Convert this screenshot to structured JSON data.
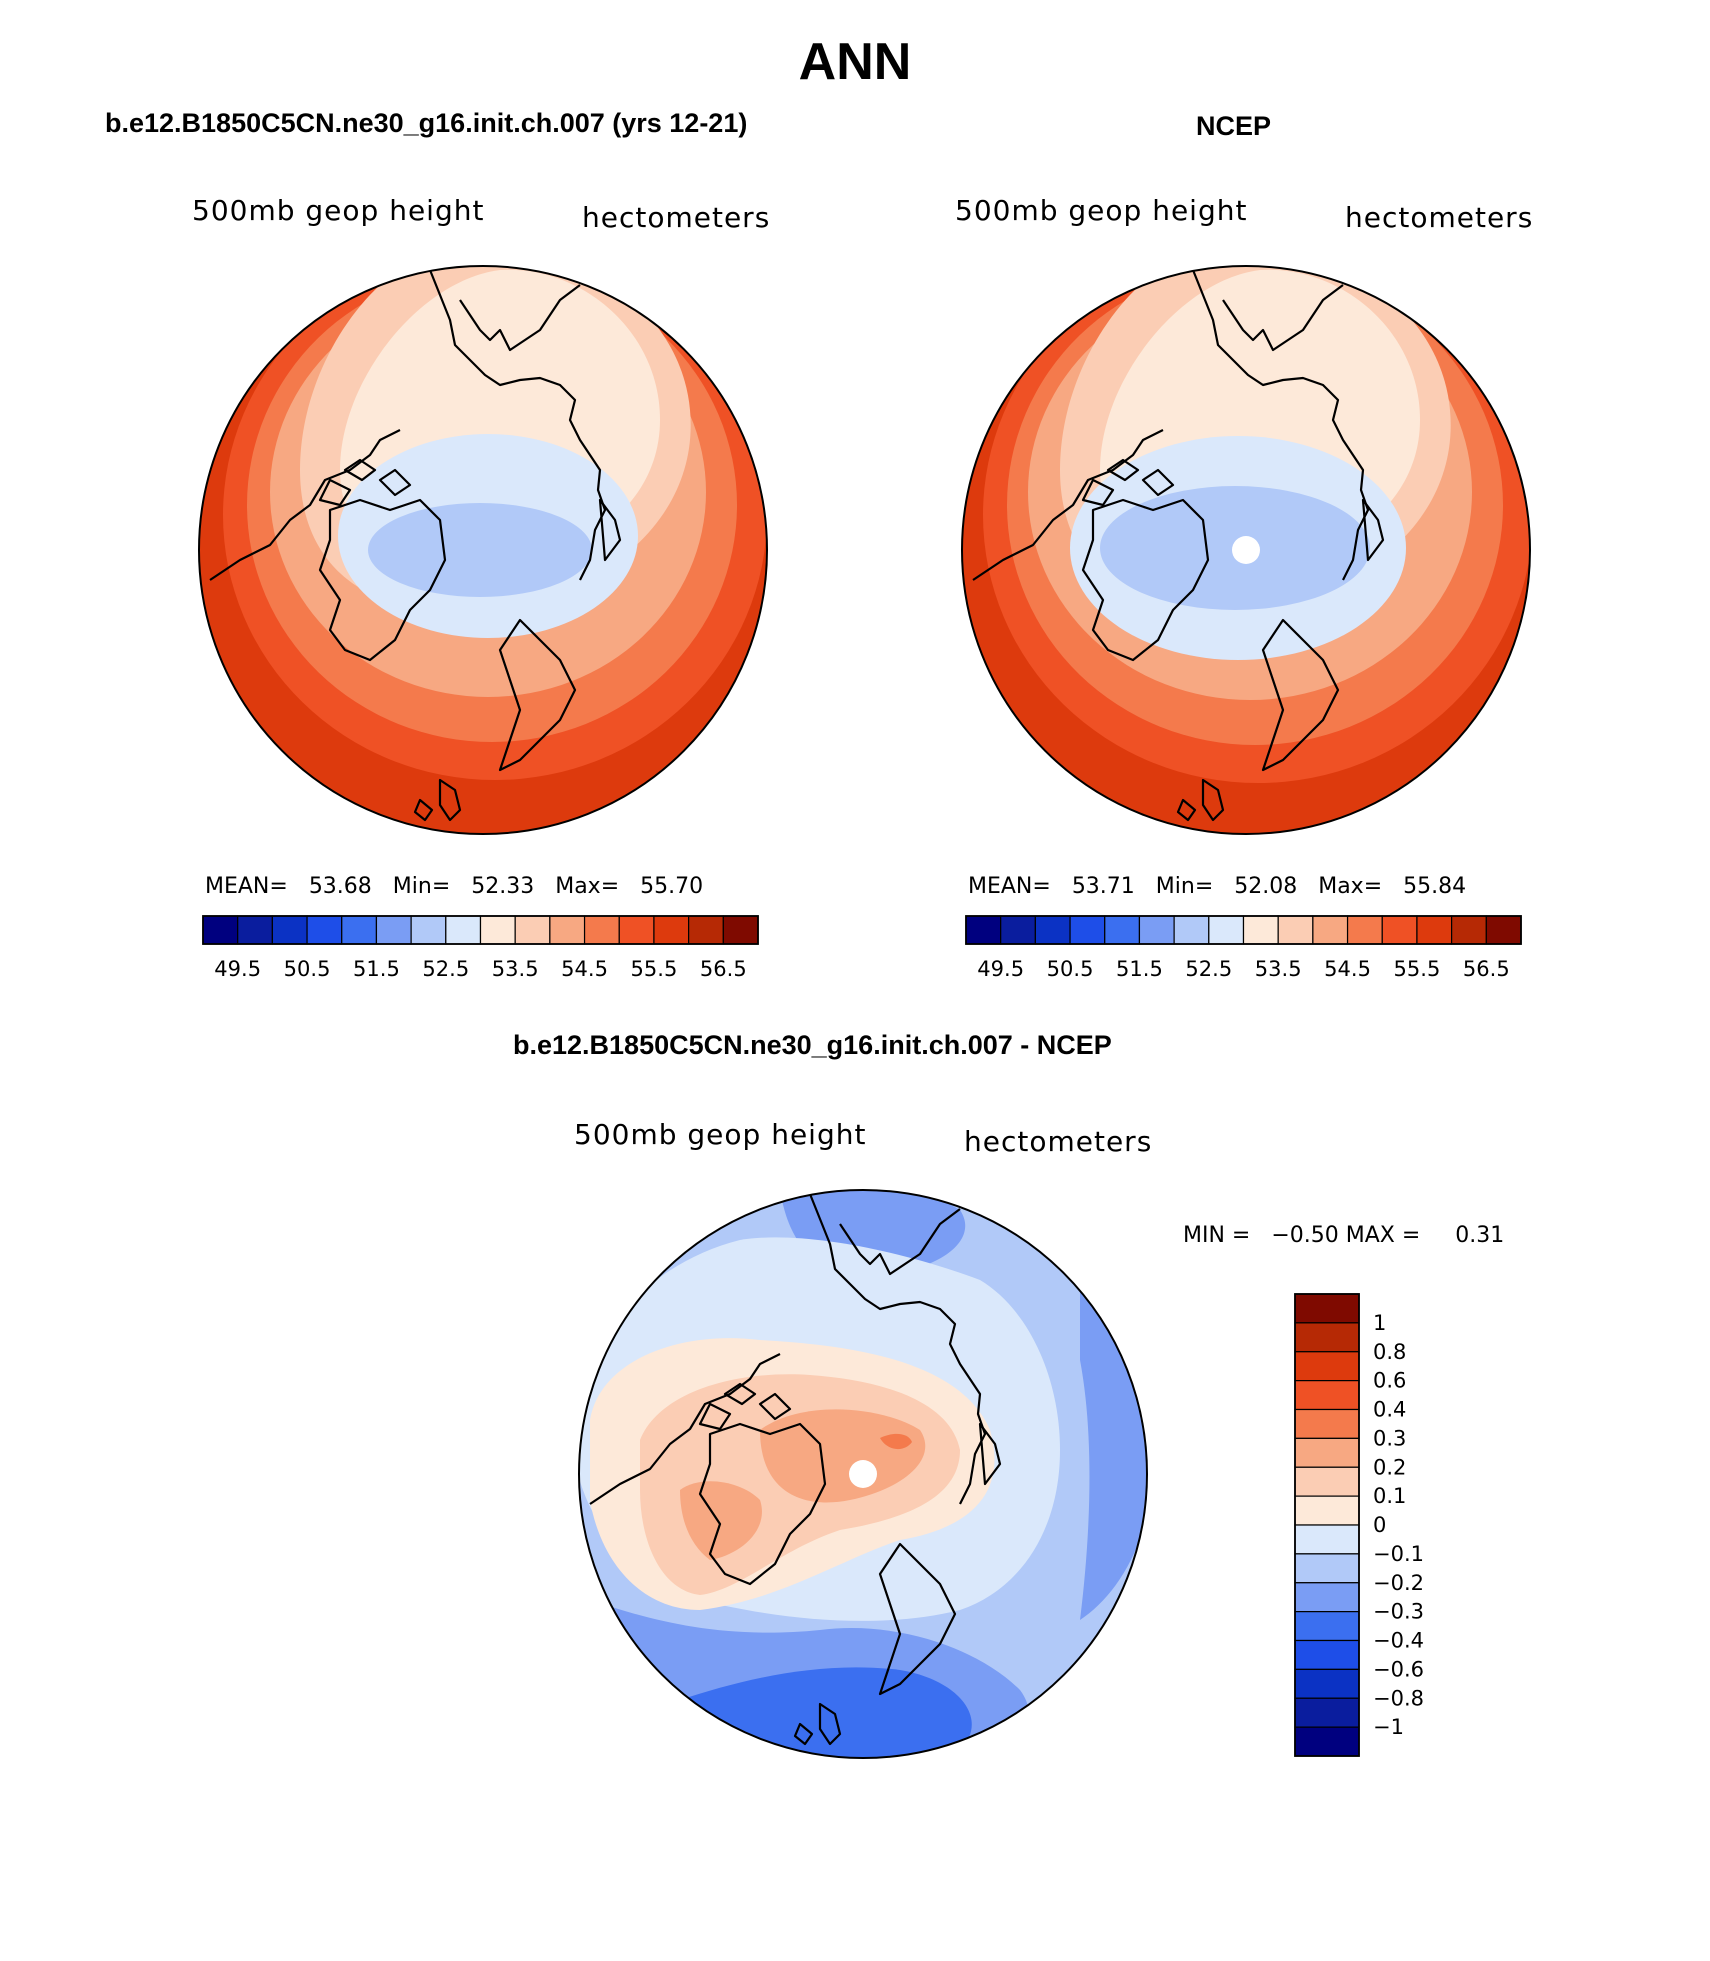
{
  "title": "ANN",
  "colors": {
    "seq": [
      "#00007f",
      "#0a1d9e",
      "#0b32c4",
      "#1e4ee8",
      "#3b6ff0",
      "#7a9df4",
      "#b1c9f8",
      "#dae8fb",
      "#fde9d9",
      "#fbcdb4",
      "#f7a882",
      "#f47a4c",
      "#ef5125",
      "#dd3a0d",
      "#b62905",
      "#7f0a00"
    ],
    "ocean_land": "#ffffff",
    "coast": "#000000"
  },
  "panels": [
    {
      "title": "b.e12.B1850C5CN.ne30_g16.init.ch.007 (yrs 12-21)",
      "variable": "500mb geop height",
      "units": "hectometers",
      "stats": {
        "mean_label": "MEAN=",
        "mean": "53.68",
        "min_label": "Min=",
        "min": "52.33",
        "max_label": "Max=",
        "max": "55.70"
      },
      "colorbar_ticks": [
        "49.5",
        "50.5",
        "51.5",
        "52.5",
        "53.5",
        "54.5",
        "55.5",
        "56.5"
      ]
    },
    {
      "title": "NCEP",
      "variable": "500mb geop height",
      "units": "hectometers",
      "stats": {
        "mean_label": "MEAN=",
        "mean": "53.71",
        "min_label": "Min=",
        "min": "52.08",
        "max_label": "Max=",
        "max": "55.84"
      },
      "colorbar_ticks": [
        "49.5",
        "50.5",
        "51.5",
        "52.5",
        "53.5",
        "54.5",
        "55.5",
        "56.5"
      ]
    },
    {
      "title": "b.e12.B1850C5CN.ne30_g16.init.ch.007 - NCEP",
      "variable": "500mb geop height",
      "units": "hectometers",
      "stats": {
        "min_label": "MIN =",
        "min": "−0.50",
        "max_label": "MAX =",
        "max": "0.31"
      },
      "colorbar_ticks": [
        "1",
        "0.8",
        "0.6",
        "0.4",
        "0.3",
        "0.2",
        "0.1",
        "0",
        "−0.1",
        "−0.2",
        "−0.3",
        "−0.4",
        "−0.6",
        "−0.8",
        "−1"
      ]
    }
  ],
  "chart_data": [
    {
      "type": "heatmap",
      "title": "b.e12.B1850C5CN.ne30_g16.init.ch.007 (yrs 12-21)",
      "projection": "north polar stereographic",
      "variable": "500mb geop height",
      "units": "hectometers",
      "mean": 53.68,
      "min": 52.33,
      "max": 55.7,
      "levels": [
        49.5,
        50,
        50.5,
        51,
        51.5,
        52,
        52.5,
        53,
        53.5,
        54,
        54.5,
        55,
        55.5,
        56,
        56.5
      ],
      "ticks": [
        49.5,
        50.5,
        51.5,
        52.5,
        53.5,
        54.5,
        55.5,
        56.5
      ]
    },
    {
      "type": "heatmap",
      "title": "NCEP",
      "projection": "north polar stereographic",
      "variable": "500mb geop height",
      "units": "hectometers",
      "mean": 53.71,
      "min": 52.08,
      "max": 55.84,
      "levels": [
        49.5,
        50,
        50.5,
        51,
        51.5,
        52,
        52.5,
        53,
        53.5,
        54,
        54.5,
        55,
        55.5,
        56,
        56.5
      ],
      "ticks": [
        49.5,
        50.5,
        51.5,
        52.5,
        53.5,
        54.5,
        55.5,
        56.5
      ]
    },
    {
      "type": "heatmap",
      "title": "b.e12.B1850C5CN.ne30_g16.init.ch.007 - NCEP",
      "projection": "north polar stereographic",
      "variable": "500mb geop height",
      "units": "hectometers",
      "min": -0.5,
      "max": 0.31,
      "levels": [
        -1,
        -0.8,
        -0.6,
        -0.4,
        -0.3,
        -0.2,
        -0.1,
        0,
        0.1,
        0.2,
        0.3,
        0.4,
        0.6,
        0.8,
        1
      ]
    }
  ]
}
